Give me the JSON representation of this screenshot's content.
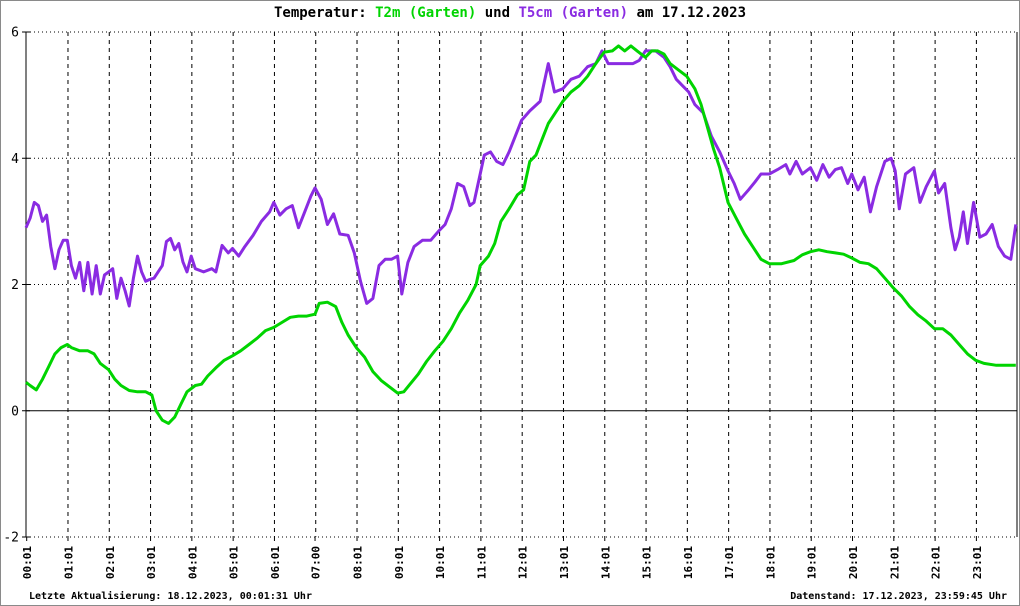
{
  "title": {
    "prefix": "Temperatur: ",
    "series1_label": "T2m (Garten)",
    "mid": " und ",
    "series2_label": "T5cm (Garten)",
    "suffix": " am 17.12.2023"
  },
  "footer": {
    "left": "Letzte Aktualisierung: 18.12.2023, 00:01:31 Uhr",
    "right": "Datenstand: 17.12.2023, 23:59:45 Uhr"
  },
  "colors": {
    "t2m": "#00d400",
    "t5cm": "#8a2be2",
    "axis": "#000000",
    "background": "#ffffff"
  },
  "chart_data": {
    "type": "line",
    "title": "Temperatur: T2m (Garten) und T5cm (Garten) am 17.12.2023",
    "xlabel": "",
    "ylabel": "",
    "ylim": [
      -2,
      6
    ],
    "xlim_hours": [
      0,
      24
    ],
    "y_ticks": [
      6,
      4,
      2,
      0,
      -2
    ],
    "x_tick_labels": [
      "00:01",
      "01:01",
      "02:01",
      "03:01",
      "04:01",
      "05:01",
      "06:01",
      "07:00",
      "08:01",
      "09:01",
      "10:01",
      "11:01",
      "12:01",
      "13:01",
      "14:01",
      "15:01",
      "16:01",
      "17:01",
      "18:01",
      "19:01",
      "20:01",
      "21:01",
      "22:01",
      "23:01"
    ],
    "grid": {
      "horizontal_dotted_at": [
        6,
        4,
        2,
        -2
      ],
      "horizontal_solid_at": [
        0
      ],
      "vertical_dashed": "hourly"
    },
    "legend_position": "in-title",
    "series": [
      {
        "name": "T2m (Garten)",
        "color": "#00d400",
        "unit": "degC",
        "points": [
          [
            0.0,
            0.45
          ],
          [
            0.1,
            0.4
          ],
          [
            0.25,
            0.33
          ],
          [
            0.4,
            0.5
          ],
          [
            0.55,
            0.7
          ],
          [
            0.7,
            0.9
          ],
          [
            0.85,
            1.0
          ],
          [
            1.0,
            1.05
          ],
          [
            1.1,
            1.0
          ],
          [
            1.3,
            0.95
          ],
          [
            1.5,
            0.95
          ],
          [
            1.65,
            0.9
          ],
          [
            1.8,
            0.75
          ],
          [
            2.0,
            0.65
          ],
          [
            2.15,
            0.5
          ],
          [
            2.3,
            0.4
          ],
          [
            2.5,
            0.32
          ],
          [
            2.7,
            0.3
          ],
          [
            2.9,
            0.3
          ],
          [
            3.05,
            0.25
          ],
          [
            3.15,
            0.0
          ],
          [
            3.3,
            -0.15
          ],
          [
            3.45,
            -0.2
          ],
          [
            3.6,
            -0.1
          ],
          [
            3.75,
            0.1
          ],
          [
            3.9,
            0.3
          ],
          [
            4.1,
            0.4
          ],
          [
            4.25,
            0.42
          ],
          [
            4.4,
            0.55
          ],
          [
            4.6,
            0.68
          ],
          [
            4.8,
            0.8
          ],
          [
            5.0,
            0.87
          ],
          [
            5.2,
            0.95
          ],
          [
            5.4,
            1.05
          ],
          [
            5.6,
            1.15
          ],
          [
            5.8,
            1.27
          ],
          [
            6.0,
            1.32
          ],
          [
            6.2,
            1.4
          ],
          [
            6.4,
            1.48
          ],
          [
            6.6,
            1.5
          ],
          [
            6.8,
            1.5
          ],
          [
            7.0,
            1.53
          ],
          [
            7.1,
            1.7
          ],
          [
            7.3,
            1.72
          ],
          [
            7.5,
            1.65
          ],
          [
            7.65,
            1.4
          ],
          [
            7.8,
            1.2
          ],
          [
            8.0,
            1.0
          ],
          [
            8.2,
            0.85
          ],
          [
            8.4,
            0.62
          ],
          [
            8.6,
            0.48
          ],
          [
            8.8,
            0.38
          ],
          [
            9.0,
            0.28
          ],
          [
            9.15,
            0.3
          ],
          [
            9.3,
            0.42
          ],
          [
            9.5,
            0.58
          ],
          [
            9.7,
            0.78
          ],
          [
            9.9,
            0.95
          ],
          [
            10.1,
            1.1
          ],
          [
            10.3,
            1.3
          ],
          [
            10.5,
            1.55
          ],
          [
            10.7,
            1.75
          ],
          [
            10.9,
            2.0
          ],
          [
            11.0,
            2.3
          ],
          [
            11.2,
            2.45
          ],
          [
            11.35,
            2.65
          ],
          [
            11.5,
            3.0
          ],
          [
            11.7,
            3.2
          ],
          [
            11.9,
            3.42
          ],
          [
            12.05,
            3.5
          ],
          [
            12.2,
            3.95
          ],
          [
            12.35,
            4.05
          ],
          [
            12.5,
            4.3
          ],
          [
            12.65,
            4.55
          ],
          [
            12.8,
            4.7
          ],
          [
            13.0,
            4.9
          ],
          [
            13.2,
            5.05
          ],
          [
            13.4,
            5.15
          ],
          [
            13.6,
            5.3
          ],
          [
            13.8,
            5.5
          ],
          [
            14.0,
            5.68
          ],
          [
            14.2,
            5.7
          ],
          [
            14.35,
            5.78
          ],
          [
            14.5,
            5.7
          ],
          [
            14.65,
            5.78
          ],
          [
            14.8,
            5.7
          ],
          [
            15.0,
            5.6
          ],
          [
            15.15,
            5.7
          ],
          [
            15.3,
            5.7
          ],
          [
            15.45,
            5.65
          ],
          [
            15.6,
            5.5
          ],
          [
            15.8,
            5.4
          ],
          [
            16.0,
            5.3
          ],
          [
            16.2,
            5.1
          ],
          [
            16.35,
            4.85
          ],
          [
            16.5,
            4.5
          ],
          [
            16.65,
            4.15
          ],
          [
            16.8,
            3.85
          ],
          [
            17.0,
            3.3
          ],
          [
            17.2,
            3.05
          ],
          [
            17.4,
            2.8
          ],
          [
            17.6,
            2.6
          ],
          [
            17.8,
            2.4
          ],
          [
            18.0,
            2.33
          ],
          [
            18.3,
            2.33
          ],
          [
            18.6,
            2.38
          ],
          [
            18.8,
            2.47
          ],
          [
            19.0,
            2.52
          ],
          [
            19.2,
            2.55
          ],
          [
            19.4,
            2.52
          ],
          [
            19.6,
            2.5
          ],
          [
            19.8,
            2.48
          ],
          [
            20.0,
            2.42
          ],
          [
            20.2,
            2.35
          ],
          [
            20.4,
            2.33
          ],
          [
            20.6,
            2.25
          ],
          [
            20.8,
            2.1
          ],
          [
            21.0,
            1.95
          ],
          [
            21.2,
            1.82
          ],
          [
            21.4,
            1.65
          ],
          [
            21.6,
            1.52
          ],
          [
            21.8,
            1.42
          ],
          [
            22.0,
            1.3
          ],
          [
            22.2,
            1.3
          ],
          [
            22.4,
            1.2
          ],
          [
            22.6,
            1.05
          ],
          [
            22.8,
            0.9
          ],
          [
            23.0,
            0.8
          ],
          [
            23.2,
            0.75
          ],
          [
            23.5,
            0.72
          ],
          [
            23.97,
            0.72
          ]
        ]
      },
      {
        "name": "T5cm (Garten)",
        "color": "#8a2be2",
        "unit": "degC",
        "points": [
          [
            0.0,
            2.9
          ],
          [
            0.1,
            3.05
          ],
          [
            0.2,
            3.3
          ],
          [
            0.3,
            3.25
          ],
          [
            0.4,
            3.0
          ],
          [
            0.5,
            3.1
          ],
          [
            0.6,
            2.6
          ],
          [
            0.7,
            2.25
          ],
          [
            0.8,
            2.55
          ],
          [
            0.9,
            2.7
          ],
          [
            1.0,
            2.7
          ],
          [
            1.1,
            2.3
          ],
          [
            1.2,
            2.1
          ],
          [
            1.3,
            2.35
          ],
          [
            1.4,
            1.9
          ],
          [
            1.5,
            2.35
          ],
          [
            1.6,
            1.85
          ],
          [
            1.7,
            2.3
          ],
          [
            1.8,
            1.85
          ],
          [
            1.9,
            2.15
          ],
          [
            2.0,
            2.2
          ],
          [
            2.1,
            2.25
          ],
          [
            2.2,
            1.78
          ],
          [
            2.3,
            2.1
          ],
          [
            2.4,
            1.9
          ],
          [
            2.5,
            1.66
          ],
          [
            2.6,
            2.1
          ],
          [
            2.7,
            2.45
          ],
          [
            2.8,
            2.2
          ],
          [
            2.9,
            2.05
          ],
          [
            3.0,
            2.08
          ],
          [
            3.1,
            2.1
          ],
          [
            3.2,
            2.2
          ],
          [
            3.3,
            2.3
          ],
          [
            3.4,
            2.68
          ],
          [
            3.5,
            2.73
          ],
          [
            3.6,
            2.55
          ],
          [
            3.7,
            2.65
          ],
          [
            3.8,
            2.36
          ],
          [
            3.9,
            2.2
          ],
          [
            4.0,
            2.45
          ],
          [
            4.1,
            2.25
          ],
          [
            4.3,
            2.2
          ],
          [
            4.5,
            2.25
          ],
          [
            4.6,
            2.2
          ],
          [
            4.75,
            2.62
          ],
          [
            4.9,
            2.5
          ],
          [
            5.0,
            2.57
          ],
          [
            5.15,
            2.45
          ],
          [
            5.3,
            2.6
          ],
          [
            5.5,
            2.78
          ],
          [
            5.7,
            3.0
          ],
          [
            5.9,
            3.15
          ],
          [
            6.0,
            3.3
          ],
          [
            6.15,
            3.1
          ],
          [
            6.3,
            3.2
          ],
          [
            6.45,
            3.25
          ],
          [
            6.6,
            2.9
          ],
          [
            6.75,
            3.15
          ],
          [
            6.9,
            3.4
          ],
          [
            7.0,
            3.53
          ],
          [
            7.15,
            3.35
          ],
          [
            7.3,
            2.95
          ],
          [
            7.45,
            3.12
          ],
          [
            7.6,
            2.8
          ],
          [
            7.8,
            2.78
          ],
          [
            7.95,
            2.5
          ],
          [
            8.1,
            2.05
          ],
          [
            8.25,
            1.7
          ],
          [
            8.4,
            1.78
          ],
          [
            8.55,
            2.3
          ],
          [
            8.7,
            2.4
          ],
          [
            8.85,
            2.4
          ],
          [
            9.0,
            2.45
          ],
          [
            9.1,
            1.85
          ],
          [
            9.25,
            2.35
          ],
          [
            9.4,
            2.6
          ],
          [
            9.6,
            2.7
          ],
          [
            9.8,
            2.7
          ],
          [
            10.0,
            2.85
          ],
          [
            10.15,
            2.95
          ],
          [
            10.3,
            3.2
          ],
          [
            10.45,
            3.6
          ],
          [
            10.6,
            3.55
          ],
          [
            10.75,
            3.25
          ],
          [
            10.85,
            3.3
          ],
          [
            11.0,
            3.75
          ],
          [
            11.1,
            4.05
          ],
          [
            11.25,
            4.1
          ],
          [
            11.4,
            3.95
          ],
          [
            11.55,
            3.9
          ],
          [
            11.7,
            4.1
          ],
          [
            11.85,
            4.35
          ],
          [
            12.0,
            4.6
          ],
          [
            12.2,
            4.75
          ],
          [
            12.45,
            4.9
          ],
          [
            12.65,
            5.5
          ],
          [
            12.8,
            5.05
          ],
          [
            13.0,
            5.1
          ],
          [
            13.2,
            5.25
          ],
          [
            13.4,
            5.3
          ],
          [
            13.6,
            5.45
          ],
          [
            13.8,
            5.5
          ],
          [
            13.95,
            5.7
          ],
          [
            14.1,
            5.5
          ],
          [
            14.4,
            5.5
          ],
          [
            14.7,
            5.5
          ],
          [
            14.85,
            5.55
          ],
          [
            15.0,
            5.7
          ],
          [
            15.25,
            5.7
          ],
          [
            15.45,
            5.6
          ],
          [
            15.6,
            5.45
          ],
          [
            15.75,
            5.25
          ],
          [
            15.9,
            5.15
          ],
          [
            16.05,
            5.05
          ],
          [
            16.2,
            4.85
          ],
          [
            16.4,
            4.72
          ],
          [
            16.6,
            4.35
          ],
          [
            16.8,
            4.1
          ],
          [
            17.0,
            3.8
          ],
          [
            17.15,
            3.6
          ],
          [
            17.3,
            3.35
          ],
          [
            17.5,
            3.5
          ],
          [
            17.65,
            3.62
          ],
          [
            17.8,
            3.75
          ],
          [
            18.0,
            3.75
          ],
          [
            18.2,
            3.82
          ],
          [
            18.4,
            3.9
          ],
          [
            18.5,
            3.75
          ],
          [
            18.65,
            3.95
          ],
          [
            18.8,
            3.75
          ],
          [
            19.0,
            3.85
          ],
          [
            19.15,
            3.65
          ],
          [
            19.3,
            3.9
          ],
          [
            19.45,
            3.7
          ],
          [
            19.6,
            3.82
          ],
          [
            19.75,
            3.85
          ],
          [
            19.9,
            3.6
          ],
          [
            20.0,
            3.75
          ],
          [
            20.15,
            3.5
          ],
          [
            20.3,
            3.7
          ],
          [
            20.45,
            3.15
          ],
          [
            20.6,
            3.55
          ],
          [
            20.8,
            3.95
          ],
          [
            20.95,
            4.0
          ],
          [
            21.05,
            3.8
          ],
          [
            21.15,
            3.2
          ],
          [
            21.3,
            3.75
          ],
          [
            21.5,
            3.85
          ],
          [
            21.65,
            3.3
          ],
          [
            21.8,
            3.55
          ],
          [
            22.0,
            3.8
          ],
          [
            22.1,
            3.45
          ],
          [
            22.25,
            3.6
          ],
          [
            22.4,
            2.9
          ],
          [
            22.5,
            2.55
          ],
          [
            22.6,
            2.75
          ],
          [
            22.7,
            3.15
          ],
          [
            22.8,
            2.65
          ],
          [
            22.95,
            3.3
          ],
          [
            23.1,
            2.75
          ],
          [
            23.25,
            2.8
          ],
          [
            23.4,
            2.95
          ],
          [
            23.55,
            2.6
          ],
          [
            23.7,
            2.45
          ],
          [
            23.85,
            2.4
          ],
          [
            23.97,
            2.95
          ]
        ]
      }
    ]
  }
}
